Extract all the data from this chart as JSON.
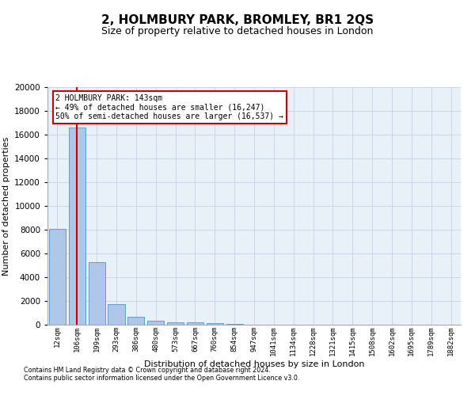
{
  "title": "2, HOLMBURY PARK, BROMLEY, BR1 2QS",
  "subtitle": "Size of property relative to detached houses in London",
  "xlabel": "Distribution of detached houses by size in London",
  "ylabel": "Number of detached properties",
  "categories": [
    "12sqm",
    "106sqm",
    "199sqm",
    "293sqm",
    "386sqm",
    "480sqm",
    "573sqm",
    "667sqm",
    "760sqm",
    "854sqm",
    "947sqm",
    "1041sqm",
    "1134sqm",
    "1228sqm",
    "1321sqm",
    "1415sqm",
    "1508sqm",
    "1602sqm",
    "1695sqm",
    "1789sqm",
    "1882sqm"
  ],
  "values": [
    8050,
    16600,
    5300,
    1750,
    700,
    320,
    220,
    175,
    150,
    100,
    0,
    0,
    0,
    0,
    0,
    0,
    0,
    0,
    0,
    0,
    0
  ],
  "bar_color": "#aec6e8",
  "bar_edge_color": "#5a9fd4",
  "highlight_bar_index": 1,
  "highlight_color": "#cc0000",
  "annotation_title": "2 HOLMBURY PARK: 143sqm",
  "annotation_line1": "← 49% of detached houses are smaller (16,247)",
  "annotation_line2": "50% of semi-detached houses are larger (16,537) →",
  "annotation_box_color": "#ffffff",
  "annotation_box_edge_color": "#cc0000",
  "ylim": [
    0,
    20000
  ],
  "yticks": [
    0,
    2000,
    4000,
    6000,
    8000,
    10000,
    12000,
    14000,
    16000,
    18000,
    20000
  ],
  "grid_color": "#c8d8e8",
  "bg_color": "#e8f0f8",
  "title_fontsize": 11,
  "subtitle_fontsize": 9,
  "xlabel_fontsize": 8,
  "ylabel_fontsize": 8,
  "footer_line1": "Contains HM Land Registry data © Crown copyright and database right 2024.",
  "footer_line2": "Contains public sector information licensed under the Open Government Licence v3.0."
}
